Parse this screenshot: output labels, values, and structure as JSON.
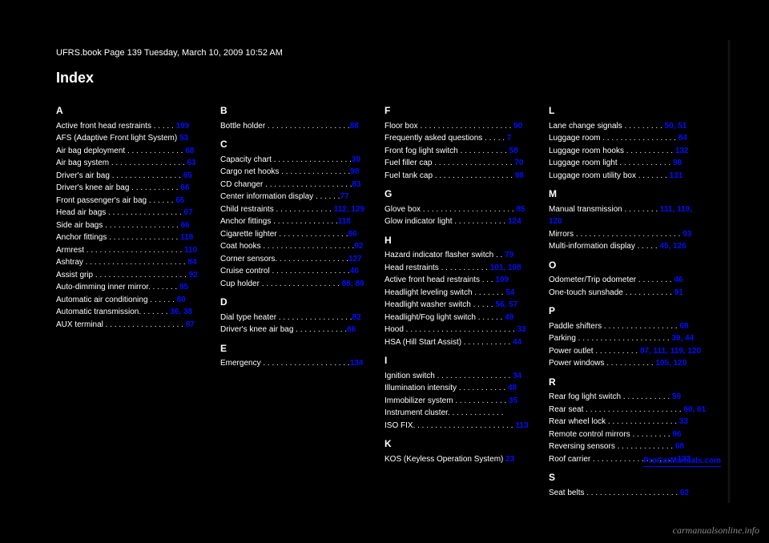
{
  "header_left": "UFRS.book  Page 139  Tuesday, March 10, 2009  10:52 AM",
  "title": "Index",
  "watermark": "carmanualsonline.info",
  "footer_link": "ProCarManuals.com",
  "columns": [
    [
      {
        "type": "letter",
        "text": "A"
      },
      {
        "type": "entry",
        "text": "Active front head restraints . . . . . ",
        "pg": "109"
      },
      {
        "type": "entry",
        "text": "AFS (Adaptive Front light System) ",
        "pg": "53"
      },
      {
        "type": "entry",
        "text": "Air bag deployment . . . . . . . . . . . . . ",
        "pg": "68"
      },
      {
        "type": "entry",
        "text": "Air bag system  . . . . . . . . . . . . . . . . . ",
        "pg": "63"
      },
      {
        "type": "entry",
        "text": "  Driver's air bag . . . . . . . . . . . . . . . . ",
        "pg": "65"
      },
      {
        "type": "entry",
        "text": "  Driver's knee air bag . . . . . . . . . . . ",
        "pg": "66"
      },
      {
        "type": "entry",
        "text": "  Front passenger's air bag  . . . . . . ",
        "pg": "65"
      },
      {
        "type": "entry",
        "text": "  Head air bags . . . . . . . . . . . . . . . . . ",
        "pg": "67"
      },
      {
        "type": "entry",
        "text": "  Side air bags . . . . . . . . . . . . . . . . . ",
        "pg": "66"
      },
      {
        "type": "entry",
        "text": "Anchor fittings . . . . . . . . . . . . . . . . ",
        "pg": "118"
      },
      {
        "type": "entry",
        "text": "Armrest  . . . . . . . . . . . . . . . . . . . . . . ",
        "pg": "110"
      },
      {
        "type": "entry",
        "text": "Ashtray . . . . . . . . . . . . . . . . . . . . . . . ",
        "pg": "84"
      },
      {
        "type": "entry",
        "text": "Assist grip . . . . . . . . . . . . . . . . . . . . . ",
        "pg": "92"
      },
      {
        "type": "entry",
        "text": "Auto-dimming inner mirror. . . . . . . ",
        "pg": "95"
      },
      {
        "type": "entry",
        "text": "Automatic air conditioning  . . . . . . ",
        "pg": "80"
      },
      {
        "type": "entry",
        "text": "Automatic transmission. . . . . . . ",
        "pg": "36, 38"
      },
      {
        "type": "entry",
        "text": "AUX terminal  . . . . . . . . . . . . . . . . . . ",
        "pg": "87"
      }
    ],
    [
      {
        "type": "letter",
        "text": "B"
      },
      {
        "type": "entry",
        "text": "Bottle holder . . . . . . . . . . . . . . . . . . .",
        "pg": "88"
      },
      {
        "type": "letter",
        "text": "C"
      },
      {
        "type": "entry",
        "text": "Capacity chart . . . . . . . . . . . . . . . . . .",
        "pg": "30"
      },
      {
        "type": "entry",
        "text": "Cargo net hooks . . . . . . . . . . . . . . . .",
        "pg": "98"
      },
      {
        "type": "entry",
        "text": "CD changer . . . . . . . . . . . . . . . . . . . .",
        "pg": "83"
      },
      {
        "type": "entry",
        "text": "Center information display  . . . . . .",
        "pg": "77"
      },
      {
        "type": "entry",
        "text": "Child restraints  . . . . . . . . . . . . . ",
        "pg": "112, 129"
      },
      {
        "type": "entry",
        "text": "  Anchor fittings . . . . . . . . . . . . . . .",
        "pg": "118"
      },
      {
        "type": "entry",
        "text": "Cigarette lighter  . . . . . . . . . . . . . . . .",
        "pg": "86"
      },
      {
        "type": "entry",
        "text": "Coat hooks . . . . . . . . . . . . . . . . . . . . .",
        "pg": "92"
      },
      {
        "type": "entry",
        "text": "Corner sensors. . . . . . . . . . . . . . . . .",
        "pg": "127"
      },
      {
        "type": "entry",
        "text": "Cruise control . . . . . . . . . . . . . . . . . .",
        "pg": "40"
      },
      {
        "type": "entry",
        "text": "Cup holder . . . . . . . . . . . . . . . . . . ",
        "pg": "88, 89"
      },
      {
        "type": "letter",
        "text": "D"
      },
      {
        "type": "entry",
        "text": "Dial type heater . . . . . . . . . . . . . . . . .",
        "pg": "82"
      },
      {
        "type": "entry",
        "text": "Driver's knee air bag . . . . . . . . . . . .",
        "pg": "66"
      },
      {
        "type": "letter",
        "text": "E"
      },
      {
        "type": "entry",
        "text": "Emergency . . . . . . . . . . . . . . . . . . . .",
        "pg": "134"
      }
    ],
    [
      {
        "type": "letter",
        "text": "F"
      },
      {
        "type": "entry",
        "text": "Floor box  . . . . . . . . . . . . . . . . . . . . . ",
        "pg": "90"
      },
      {
        "type": "entry",
        "text": "Frequently asked questions . . . . . ",
        "pg": "7"
      },
      {
        "type": "entry",
        "text": "Front fog light switch . . . . . . . . . . . ",
        "pg": "58"
      },
      {
        "type": "entry",
        "text": "Fuel filler cap . . . . . . . . . . . . . . . . . . ",
        "pg": "70"
      },
      {
        "type": "entry",
        "text": "Fuel tank cap  . . . . . . . . . . . . . . . . . . ",
        "pg": "98"
      },
      {
        "type": "letter",
        "text": "G"
      },
      {
        "type": "entry",
        "text": "Glove box  . . . . . . . . . . . . . . . . . . . . . ",
        "pg": "85"
      },
      {
        "type": "entry",
        "text": "Glow indicator light . . . . . . . . . . . . ",
        "pg": "124"
      },
      {
        "type": "letter",
        "text": "H"
      },
      {
        "type": "entry",
        "text": "Hazard indicator flasher switch . . ",
        "pg": "79"
      },
      {
        "type": "entry",
        "text": "Head restraints  . . . . . . . . . . . ",
        "pg": "101, 108"
      },
      {
        "type": "entry",
        "text": "  Active front head restraints . . . ",
        "pg": "109"
      },
      {
        "type": "entry",
        "text": "Headlight leveling switch  . . . . . . . ",
        "pg": "54"
      },
      {
        "type": "entry",
        "text": "Headlight washer switch . . . . . ",
        "pg": "56, 57"
      },
      {
        "type": "entry",
        "text": "Headlight/Fog light switch  . . . . . . ",
        "pg": "49"
      },
      {
        "type": "entry",
        "text": "Hood . . . . . . . . . . . . . . . . . . . . . . . . . ",
        "pg": "33"
      },
      {
        "type": "entry",
        "text": "HSA (Hill Start Assist) . . . . . . . . . . . ",
        "pg": "44"
      },
      {
        "type": "letter",
        "text": "I"
      },
      {
        "type": "entry",
        "text": "Ignition switch  . . . . . . . . . . . . . . . . . ",
        "pg": "34"
      },
      {
        "type": "entry",
        "text": "Illumination intensity . . . . . . . . . . . ",
        "pg": "48"
      },
      {
        "type": "entry",
        "text": "Immobilizer system  . . . . . . . . . . . . ",
        "pg": "35"
      },
      {
        "type": "entry",
        "text": "Instrument cluster. . . . . . . . . . . . .",
        "pg": ""
      },
      {
        "type": "entry",
        "text": "ISO FIX. . . . . . . . . . . . . . . . . . . . . . . ",
        "pg": "113"
      },
      {
        "type": "letter",
        "text": "K"
      },
      {
        "type": "entry",
        "text": "KOS (Keyless Operation System)  ",
        "pg": "23"
      }
    ],
    [
      {
        "type": "letter",
        "text": "L"
      },
      {
        "type": "entry",
        "text": "Lane change signals . . . . . . . . . ",
        "pg": "50, 51"
      },
      {
        "type": "entry",
        "text": "Luggage room  . . . . . . . . . . . . . . . . . ",
        "pg": "84"
      },
      {
        "type": "entry",
        "text": "Luggage room hooks . . . . . . . . . . . ",
        "pg": "132"
      },
      {
        "type": "entry",
        "text": "Luggage room light  . . . . . . . . . . . . ",
        "pg": "98"
      },
      {
        "type": "entry",
        "text": "Luggage room utility box . . . . . . . ",
        "pg": "131"
      },
      {
        "type": "letter",
        "text": "M"
      },
      {
        "type": "entry",
        "text": "Manual transmission  . . . . . . . . ",
        "pg": "111, 119, 120"
      },
      {
        "type": "entry",
        "text": "Mirrors . . . . . . . . . . . . . . . . . . . . . . . . ",
        "pg": "93"
      },
      {
        "type": "entry",
        "text": "Multi-information display . . . . . ",
        "pg": "45, 126"
      },
      {
        "type": "letter",
        "text": "O"
      },
      {
        "type": "entry",
        "text": "Odometer/Trip odometer . . . . . . . . ",
        "pg": "46"
      },
      {
        "type": "entry",
        "text": "One-touch sunshade . . . . . . . . . . . ",
        "pg": "91"
      },
      {
        "type": "letter",
        "text": "P"
      },
      {
        "type": "entry",
        "text": "Paddle shifters . . . . . . . . . . . . . . . . . ",
        "pg": "68"
      },
      {
        "type": "entry",
        "text": "Parking . . . . . . . . . . . . . . . . . . . . . ",
        "pg": "39, 44"
      },
      {
        "type": "entry",
        "text": "Power outlet . . . . . . . . . . ",
        "pg": "87, 111, 119, 120"
      },
      {
        "type": "entry",
        "text": "Power windows . . . . . . . . . . . ",
        "pg": "105, 120"
      },
      {
        "type": "letter",
        "text": "R"
      },
      {
        "type": "entry",
        "text": "Rear fog light switch  . . . . . . . . . . . ",
        "pg": "59"
      },
      {
        "type": "entry",
        "text": "Rear seat . . . . . . . . . . . . . . . . . . . . . . ",
        "pg": "60, 61"
      },
      {
        "type": "entry",
        "text": "Rear wheel lock . . . . . . . . . . . . . . . . ",
        "pg": "33"
      },
      {
        "type": "entry",
        "text": "Remote control mirrors . . . . . . . . . ",
        "pg": "96"
      },
      {
        "type": "entry",
        "text": "Reversing sensors . . . . . . . . . . . . . ",
        "pg": "68"
      },
      {
        "type": "entry",
        "text": "Roof carrier  . . . . . . . . . . . . . . . . . . . ",
        "pg": "133"
      },
      {
        "type": "letter",
        "text": "S"
      },
      {
        "type": "entry",
        "text": "Seat belts . . . . . . . . . . . . . . . . . . . . . ",
        "pg": "62"
      }
    ]
  ]
}
